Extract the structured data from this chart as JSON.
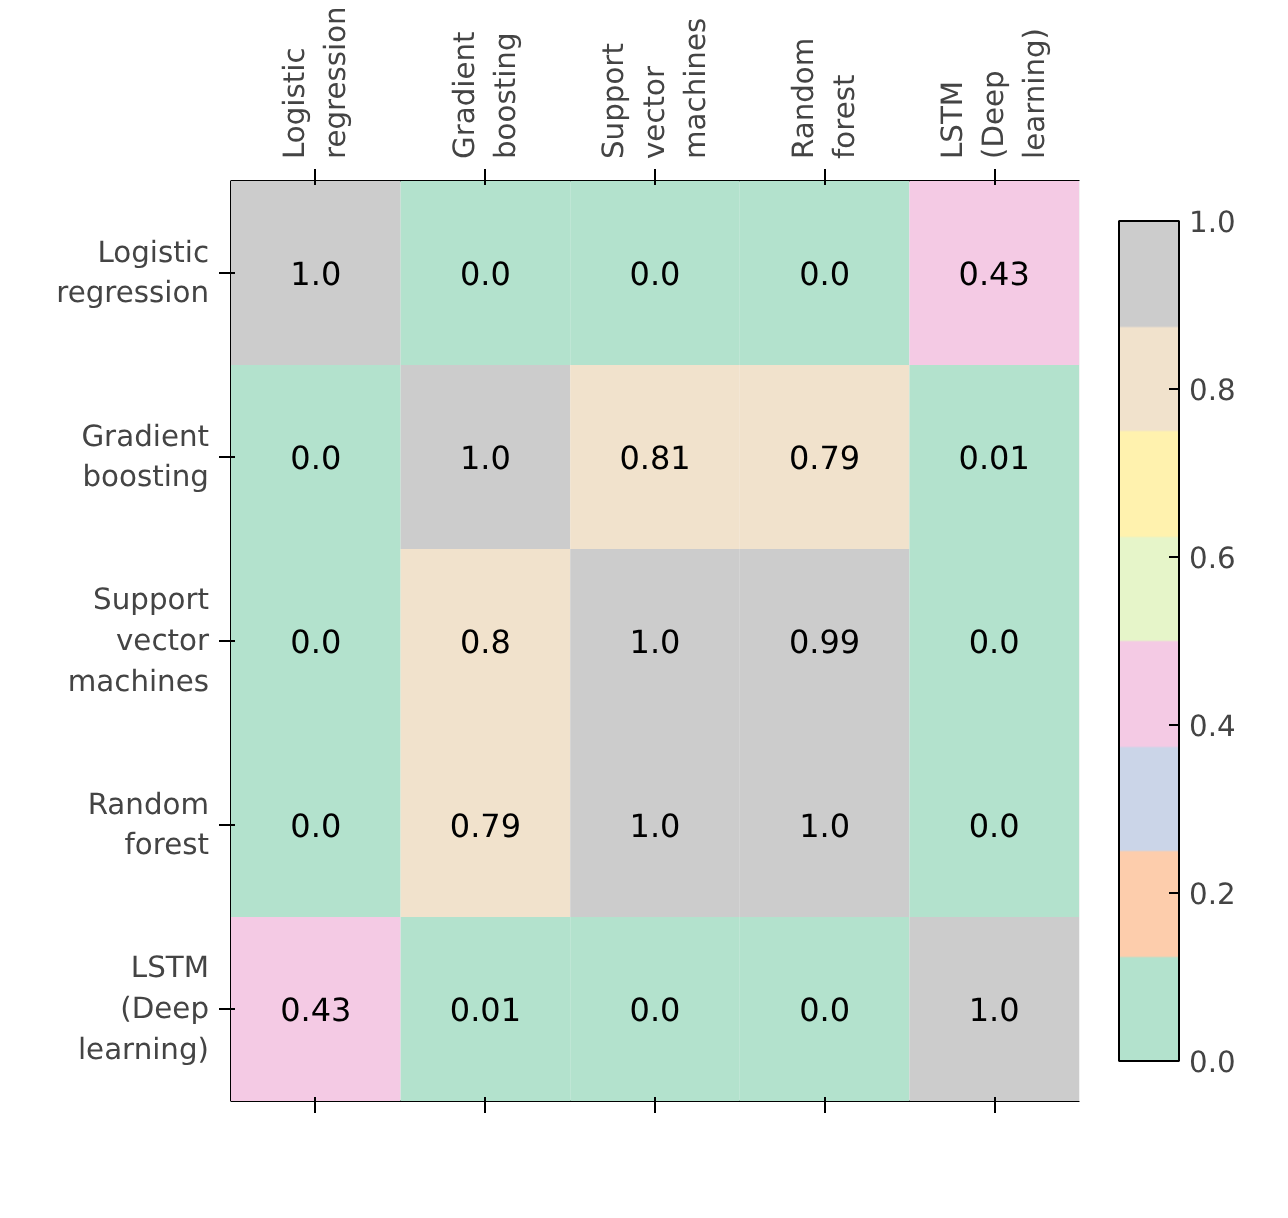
{
  "chart_data": {
    "type": "heatmap",
    "categories": [
      "Logistic\nregression",
      "Gradient\nboosting",
      "Support\nvector\nmachines",
      "Random\nforest",
      "LSTM\n(Deep\nlearning)"
    ],
    "y_categories": [
      "Logistic\nregression",
      "Gradient\nboosting",
      "Support\nvector\nmachines",
      "Random\nforest",
      "LSTM\n(Deep\nlearning)"
    ],
    "cells": [
      [
        1.0,
        0.0,
        0.0,
        0.0,
        0.43
      ],
      [
        0.0,
        1.0,
        0.81,
        0.79,
        0.01
      ],
      [
        0.0,
        0.8,
        1.0,
        0.99,
        0.0
      ],
      [
        0.0,
        0.79,
        1.0,
        1.0,
        0.0
      ],
      [
        0.43,
        0.01,
        0.0,
        0.0,
        1.0
      ]
    ],
    "colors": [
      "#b3e2cd",
      "#fdcdac",
      "#cbd5e8",
      "#f4cae4",
      "#e6f5c9",
      "#fff2ae",
      "#f1e2cc",
      "#cccccc"
    ],
    "clim": [
      0.0,
      1.0
    ],
    "cticks": [
      {
        "value": 0,
        "label": "0.0"
      },
      {
        "value": 0.2,
        "label": "0.2"
      },
      {
        "value": 0.4,
        "label": "0.4"
      },
      {
        "value": 0.6,
        "label": "0.6"
      },
      {
        "value": 0.8,
        "label": "0.8"
      },
      {
        "value": 1,
        "label": "1.0"
      }
    ],
    "cell_labels": [
      [
        "1.0",
        "0.0",
        "0.0",
        "0.0",
        "0.43"
      ],
      [
        "0.0",
        "1.0",
        "0.81",
        "0.79",
        "0.01"
      ],
      [
        "0.0",
        "0.8",
        "1.0",
        "0.99",
        "0.0"
      ],
      [
        "0.0",
        "0.79",
        "1.0",
        "1.0",
        "0.0"
      ],
      [
        "0.43",
        "0.01",
        "0.0",
        "0.0",
        "1.0"
      ]
    ]
  }
}
